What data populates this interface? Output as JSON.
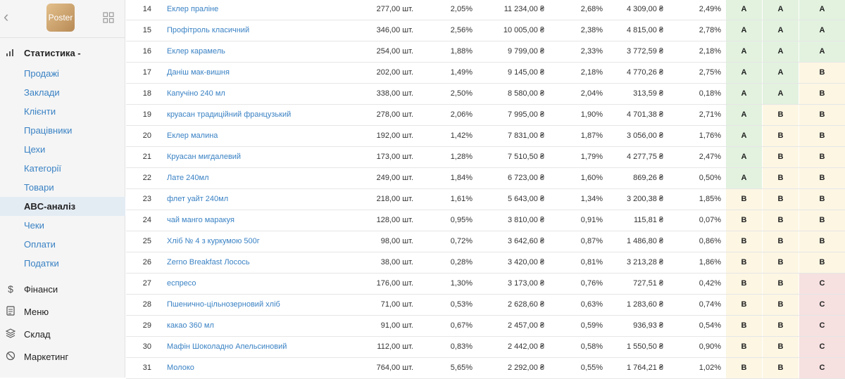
{
  "sidebar": {
    "logo_text": "Poster",
    "nav": [
      {
        "label": "Статистика -",
        "icon": "bar-chart-icon",
        "type": "main",
        "bold": true
      },
      {
        "label": "Продажі",
        "type": "sub"
      },
      {
        "label": "Заклади",
        "type": "sub"
      },
      {
        "label": "Клієнти",
        "type": "sub"
      },
      {
        "label": "Працівники",
        "type": "sub"
      },
      {
        "label": "Цехи",
        "type": "sub"
      },
      {
        "label": "Категорії",
        "type": "sub"
      },
      {
        "label": "Товари",
        "type": "sub"
      },
      {
        "label": "ABC-аналіз",
        "type": "sub",
        "active": true
      },
      {
        "label": "Чеки",
        "type": "sub"
      },
      {
        "label": "Оплати",
        "type": "sub"
      },
      {
        "label": "Податки",
        "type": "sub"
      },
      {
        "label": "Фінанси",
        "icon": "dollar-icon",
        "type": "main"
      },
      {
        "label": "Меню",
        "icon": "document-icon",
        "type": "main"
      },
      {
        "label": "Склад",
        "icon": "layers-icon",
        "type": "main"
      },
      {
        "label": "Маркетинг",
        "icon": "target-icon",
        "type": "main"
      }
    ]
  },
  "table": {
    "rows": [
      [
        "14",
        "Еклер праліне",
        "277,00 шт.",
        "2,05%",
        "11 234,00 ₴",
        "2,68%",
        "4 309,00 ₴",
        "2,49%",
        "A",
        "A",
        "A"
      ],
      [
        "15",
        "Профітроль класичний",
        "346,00 шт.",
        "2,56%",
        "10 005,00 ₴",
        "2,38%",
        "4 815,00 ₴",
        "2,78%",
        "A",
        "A",
        "A"
      ],
      [
        "16",
        "Еклер карамель",
        "254,00 шт.",
        "1,88%",
        "9 799,00 ₴",
        "2,33%",
        "3 772,59 ₴",
        "2,18%",
        "A",
        "A",
        "A"
      ],
      [
        "17",
        "Даніш мак-вишня",
        "202,00 шт.",
        "1,49%",
        "9 145,00 ₴",
        "2,18%",
        "4 770,26 ₴",
        "2,75%",
        "A",
        "A",
        "B"
      ],
      [
        "18",
        "Капучіно 240 мл",
        "338,00 шт.",
        "2,50%",
        "8 580,00 ₴",
        "2,04%",
        "313,59 ₴",
        "0,18%",
        "A",
        "A",
        "B"
      ],
      [
        "19",
        "круасан традиційний французький",
        "278,00 шт.",
        "2,06%",
        "7 995,00 ₴",
        "1,90%",
        "4 701,38 ₴",
        "2,71%",
        "A",
        "B",
        "B"
      ],
      [
        "20",
        "Еклер малина",
        "192,00 шт.",
        "1,42%",
        "7 831,00 ₴",
        "1,87%",
        "3 056,00 ₴",
        "1,76%",
        "A",
        "B",
        "B"
      ],
      [
        "21",
        "Круасан мигдалевий",
        "173,00 шт.",
        "1,28%",
        "7 510,50 ₴",
        "1,79%",
        "4 277,75 ₴",
        "2,47%",
        "A",
        "B",
        "B"
      ],
      [
        "22",
        "Лате 240мл",
        "249,00 шт.",
        "1,84%",
        "6 723,00 ₴",
        "1,60%",
        "869,26 ₴",
        "0,50%",
        "A",
        "B",
        "B"
      ],
      [
        "23",
        "флет уайт 240мл",
        "218,00 шт.",
        "1,61%",
        "5 643,00 ₴",
        "1,34%",
        "3 200,38 ₴",
        "1,85%",
        "B",
        "B",
        "B"
      ],
      [
        "24",
        "чай манго маракуя",
        "128,00 шт.",
        "0,95%",
        "3 810,00 ₴",
        "0,91%",
        "115,81 ₴",
        "0,07%",
        "B",
        "B",
        "B"
      ],
      [
        "25",
        "Хліб № 4 з куркумою 500г",
        "98,00 шт.",
        "0,72%",
        "3 642,60 ₴",
        "0,87%",
        "1 486,80 ₴",
        "0,86%",
        "B",
        "B",
        "B"
      ],
      [
        "26",
        "Zerno Breakfast Лосось",
        "38,00 шт.",
        "0,28%",
        "3 420,00 ₴",
        "0,81%",
        "3 213,28 ₴",
        "1,86%",
        "B",
        "B",
        "B"
      ],
      [
        "27",
        "еспресо",
        "176,00 шт.",
        "1,30%",
        "3 173,00 ₴",
        "0,76%",
        "727,51 ₴",
        "0,42%",
        "B",
        "B",
        "C"
      ],
      [
        "28",
        "Пшенично-цільнозерновий хліб",
        "71,00 шт.",
        "0,53%",
        "2 628,60 ₴",
        "0,63%",
        "1 283,60 ₴",
        "0,74%",
        "B",
        "B",
        "C"
      ],
      [
        "29",
        "какао 360 мл",
        "91,00 шт.",
        "0,67%",
        "2 457,00 ₴",
        "0,59%",
        "936,93 ₴",
        "0,54%",
        "B",
        "B",
        "C"
      ],
      [
        "30",
        "Мафін Шоколадно Апельсиновий",
        "112,00 шт.",
        "0,83%",
        "2 442,00 ₴",
        "0,58%",
        "1 550,50 ₴",
        "0,90%",
        "B",
        "B",
        "C"
      ],
      [
        "31",
        "Молоко",
        "764,00 шт.",
        "5,65%",
        "2 292,00 ₴",
        "0,55%",
        "1 764,21 ₴",
        "1,02%",
        "B",
        "B",
        "C"
      ]
    ]
  },
  "colors": {
    "link": "#3a82c4",
    "grade_A": "#e2f2df",
    "grade_B": "#fcf6e3",
    "grade_C": "#f6e0e0",
    "active_nav": "#e3ebf3"
  }
}
